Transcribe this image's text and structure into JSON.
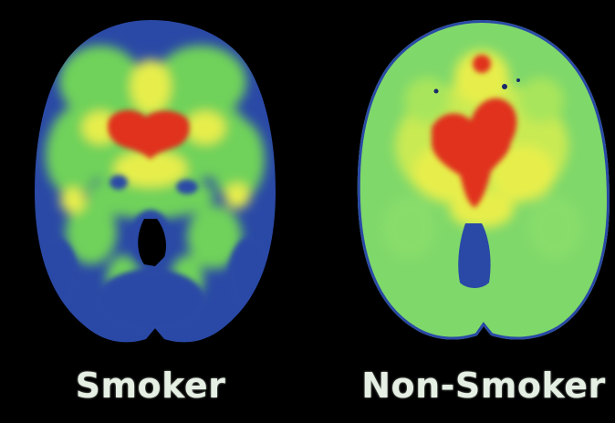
{
  "panels": [
    {
      "id": "smoker",
      "caption": "Smoker"
    },
    {
      "id": "nonsmoker",
      "caption": "Non-Smoker"
    }
  ],
  "palette": {
    "background": "#000000",
    "blue": "#2a49a6",
    "green": "#6fd25a",
    "yellow": "#e7ee4b",
    "red": "#e0301e",
    "caption": "#e6efe3"
  }
}
